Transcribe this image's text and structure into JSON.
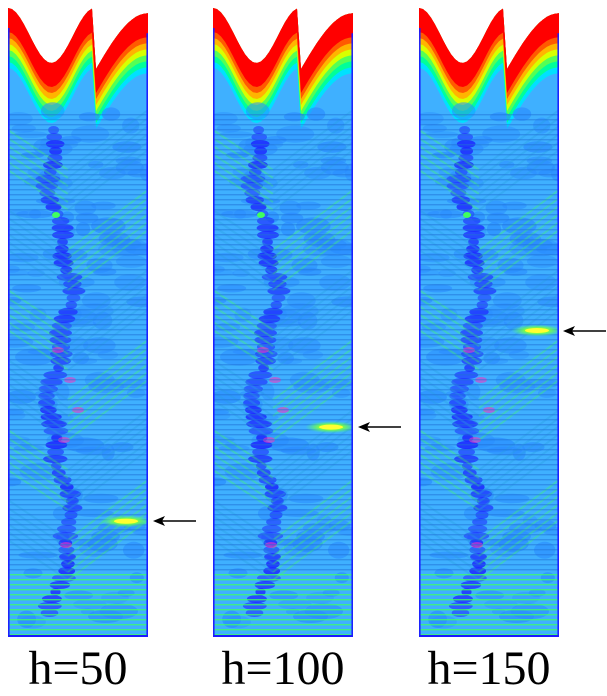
{
  "panels": [
    {
      "label": "h=50",
      "marker_depth_fraction": 0.81
    },
    {
      "label": "h=100",
      "marker_depth_fraction": 0.62
    },
    {
      "label": "h=150",
      "marker_depth_fraction": 0.425
    }
  ],
  "colors": {
    "top_band": [
      "#ff0000",
      "#ff5a00",
      "#ffb400",
      "#d8ff00",
      "#55ff55",
      "#00ff9a",
      "#00e1ff"
    ],
    "field_light": "#3fb0ff",
    "field_mid": "#2a8cff",
    "field_dark": "#1e2cff",
    "stripe": "#40ff60",
    "hotspot": "#ff30c0",
    "frame": "#1a1aff",
    "arrow": "#000000"
  },
  "icons": {
    "marker": "left-arrow-icon"
  }
}
